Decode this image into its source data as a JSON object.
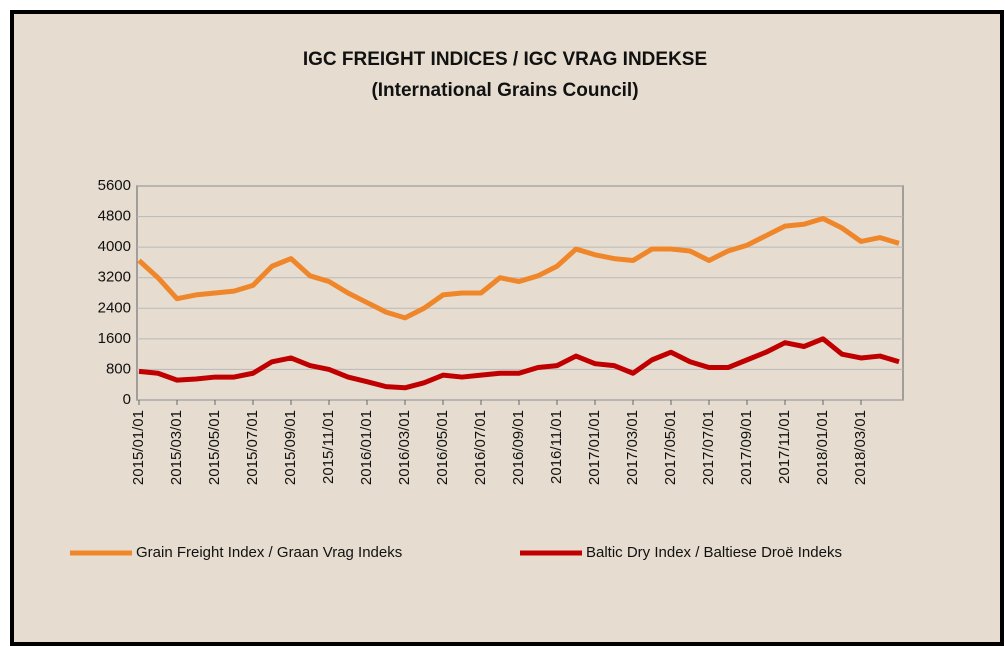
{
  "chart_data": {
    "type": "line",
    "title": "IGC FREIGHT INDICES / IGC VRAG INDEKSE",
    "subtitle": "(International  Grains Council)",
    "categories": [
      "2015/01/01",
      null,
      "2015/03/01",
      null,
      "2015/05/01",
      null,
      "2015/07/01",
      null,
      "2015/09/01",
      null,
      "2015/11/01",
      null,
      "2016/01/01",
      null,
      "2016/03/01",
      null,
      "2016/05/01",
      null,
      "2016/07/01",
      null,
      "2016/09/01",
      null,
      "2016/11/01",
      null,
      "2017/01/01",
      null,
      "2017/03/01",
      null,
      "2017/05/01",
      null,
      "2017/07/01",
      null,
      "2017/09/01",
      null,
      "2017/11/01",
      null,
      "2018/01/01",
      null,
      "2018/03/01",
      null,
      null
    ],
    "series": [
      {
        "name": "Grain Freight Index / Graan Vrag Indeks",
        "color": "#f0862a",
        "values": [
          3650,
          3200,
          2650,
          2750,
          2800,
          2850,
          3000,
          3500,
          3700,
          3250,
          3100,
          2800,
          2550,
          2300,
          2150,
          2400,
          2750,
          2800,
          2800,
          3200,
          3100,
          3250,
          3500,
          3950,
          3800,
          3700,
          3650,
          3950,
          3950,
          3900,
          3650,
          3900,
          4050,
          4300,
          4550,
          4600,
          4750,
          4500,
          4150,
          4250,
          4100
        ]
      },
      {
        "name": "Baltic Dry Index / Baltiese Droë Indeks",
        "color": "#c00000",
        "values": [
          750,
          700,
          520,
          550,
          600,
          600,
          700,
          1000,
          1100,
          900,
          800,
          600,
          480,
          350,
          320,
          450,
          650,
          600,
          650,
          700,
          700,
          850,
          900,
          1150,
          950,
          900,
          700,
          1050,
          1250,
          1000,
          850,
          850,
          1050,
          1250,
          1500,
          1400,
          1600,
          1200,
          1100,
          1150,
          1000
        ]
      }
    ],
    "ylim": [
      0,
      5600
    ],
    "yticks": [
      0,
      800,
      1600,
      2400,
      3200,
      4000,
      4800,
      5600
    ],
    "grid": true,
    "legend": "bottom"
  }
}
